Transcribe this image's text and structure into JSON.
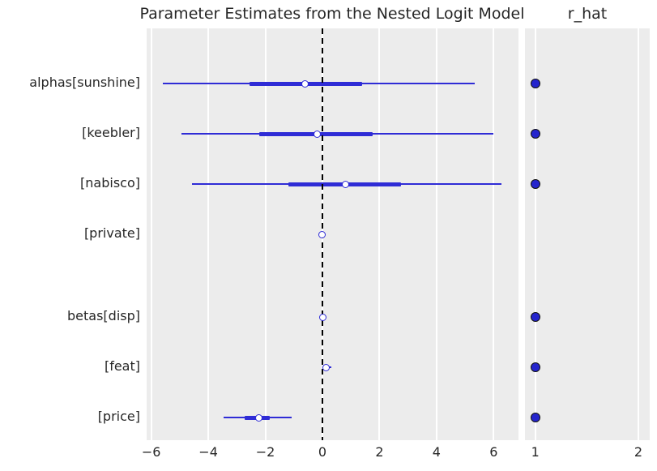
{
  "chart_data": {
    "type": "forest",
    "titles": {
      "left": "Parameter Estimates from the Nested Logit Model",
      "right": "r_hat"
    },
    "colors": {
      "interval_line": "#2f2cd6",
      "median_fill": "#ffffff",
      "median_edge": "#2f2cd6",
      "rhat_fill": "#2525cd",
      "rhat_edge": "#111111",
      "panel_bg": "#ececec",
      "grid": "#ffffff",
      "reference_line": "#000000",
      "text": "#262626"
    },
    "left_axis": {
      "min": -6.16,
      "max": 6.87,
      "ticks": [
        {
          "value": -6,
          "label": "−6"
        },
        {
          "value": -4,
          "label": "−4"
        },
        {
          "value": -2,
          "label": "−2"
        },
        {
          "value": 0,
          "label": "0"
        },
        {
          "value": 2,
          "label": "2"
        },
        {
          "value": 4,
          "label": "4"
        },
        {
          "value": 6,
          "label": "6"
        }
      ]
    },
    "right_axis": {
      "min": 0.9,
      "max": 2.11,
      "ticks": [
        {
          "value": 1,
          "label": "1"
        },
        {
          "value": 2,
          "label": "2"
        }
      ]
    },
    "reference_line": 0,
    "grid": "vertical-only",
    "rows": [
      {
        "group": "alphas",
        "label": "alphas[sunshine]",
        "ci_outer": [
          -5.6,
          5.35
        ],
        "ci_inner": [
          -2.55,
          1.4
        ],
        "median": -0.6,
        "r_hat": 1.0
      },
      {
        "group": "alphas",
        "label": "[keebler]",
        "ci_outer": [
          -4.95,
          6.0
        ],
        "ci_inner": [
          -2.2,
          1.75
        ],
        "median": -0.18,
        "r_hat": 1.0
      },
      {
        "group": "alphas",
        "label": "[nabisco]",
        "ci_outer": [
          -4.57,
          6.27
        ],
        "ci_inner": [
          -1.2,
          2.75
        ],
        "median": 0.8,
        "r_hat": 1.0
      },
      {
        "group": "alphas",
        "label": "[private]",
        "ci_outer": [
          -0.04,
          0.05
        ],
        "ci_inner": [
          -0.02,
          0.02
        ],
        "median": 0.0,
        "r_hat": null
      },
      {
        "group": "betas",
        "label": "betas[disp]",
        "ci_outer": [
          -0.03,
          0.05
        ],
        "ci_inner": [
          -0.01,
          0.02
        ],
        "median": 0.01,
        "r_hat": 1.0
      },
      {
        "group": "betas",
        "label": "[feat]",
        "ci_outer": [
          0.04,
          0.3
        ],
        "ci_inner": [
          0.07,
          0.18
        ],
        "median": 0.12,
        "r_hat": 1.0
      },
      {
        "group": "betas",
        "label": "[price]",
        "ci_outer": [
          -3.46,
          -1.08
        ],
        "ci_inner": [
          -2.72,
          -1.85
        ],
        "median": -2.24,
        "r_hat": 1.0
      }
    ]
  }
}
